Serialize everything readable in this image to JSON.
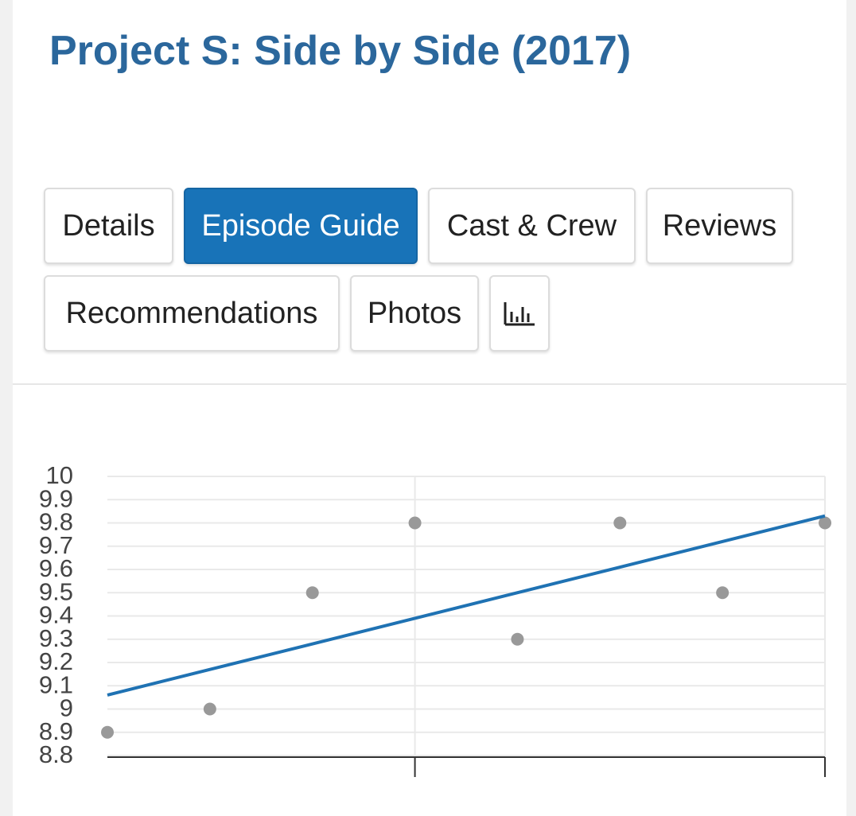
{
  "header": {
    "title": "Project S: Side by Side (2017)"
  },
  "tabs": [
    "Details",
    "Episode Guide",
    "Cast & Crew",
    "Reviews",
    "Recommendations",
    "Photos"
  ],
  "active_tab": 1,
  "chart_data": {
    "type": "scatter",
    "x": [
      1,
      2,
      3,
      4,
      5,
      6,
      7,
      8
    ],
    "values": [
      8.9,
      9.0,
      9.5,
      9.8,
      9.3,
      9.8,
      9.5,
      9.8
    ],
    "color": "#999999",
    "trend_line": {
      "x": [
        1,
        8
      ],
      "values": [
        9.06,
        9.83
      ],
      "color": "#1f72b3"
    },
    "xlim": [
      1,
      8
    ],
    "xticks": [
      4,
      8
    ],
    "ylim": [
      8.8,
      10
    ],
    "yticks": [
      10,
      9.9,
      9.8,
      9.7,
      9.6,
      9.5,
      9.4,
      9.3,
      9.2,
      9.1,
      9,
      8.9,
      8.8
    ],
    "grid": true
  }
}
